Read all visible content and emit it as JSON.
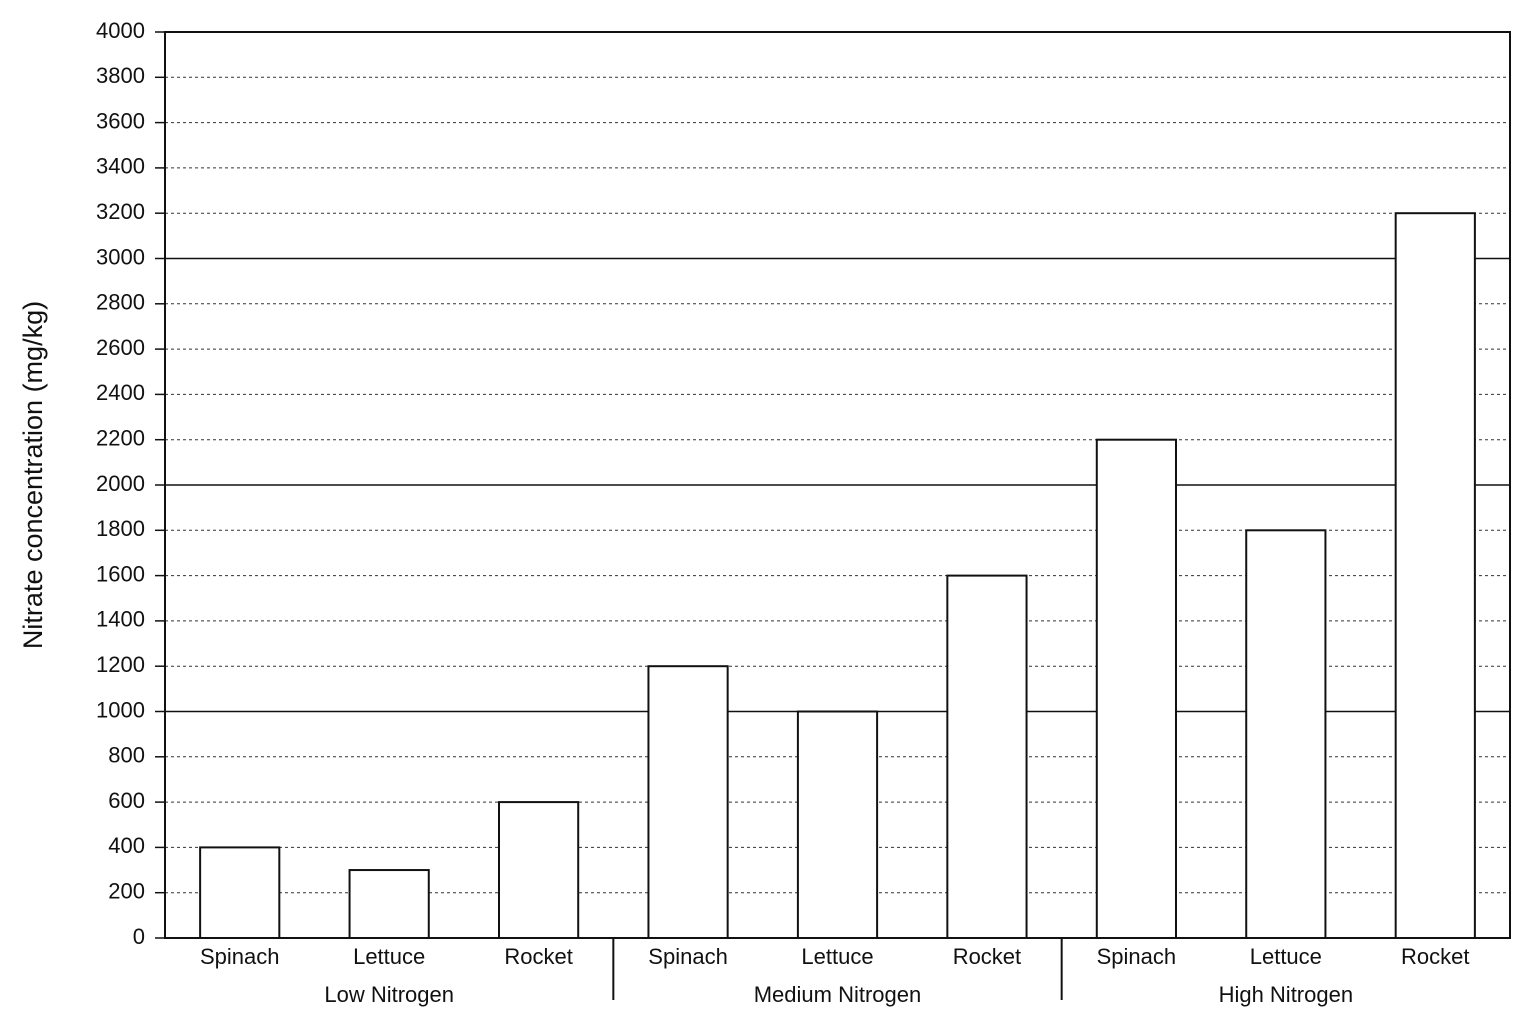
{
  "chart_data": {
    "type": "grouped_bar",
    "y_label": "Nitrate concentration (mg/kg)",
    "groups": [
      {
        "name": "Low Nitrogen",
        "categories": [
          "Spinach",
          "Lettuce",
          "Rocket"
        ],
        "values": [
          400,
          300,
          600
        ]
      },
      {
        "name": "Medium Nitrogen",
        "categories": [
          "Spinach",
          "Lettuce",
          "Rocket"
        ],
        "values": [
          1200,
          1000,
          1600
        ]
      },
      {
        "name": "High Nitrogen",
        "categories": [
          "Spinach",
          "Lettuce",
          "Rocket"
        ],
        "values": [
          2200,
          1800,
          3200
        ]
      }
    ],
    "color": "#ffffff",
    "ylim": [
      0,
      4000
    ],
    "yticks": [
      0,
      200,
      400,
      600,
      800,
      1000,
      1200,
      1400,
      1600,
      1800,
      2000,
      2200,
      2400,
      2600,
      2800,
      3000,
      3200,
      3400,
      3600,
      3800,
      4000
    ],
    "grid": true,
    "grid_major": [
      1000,
      2000,
      3000
    ]
  }
}
